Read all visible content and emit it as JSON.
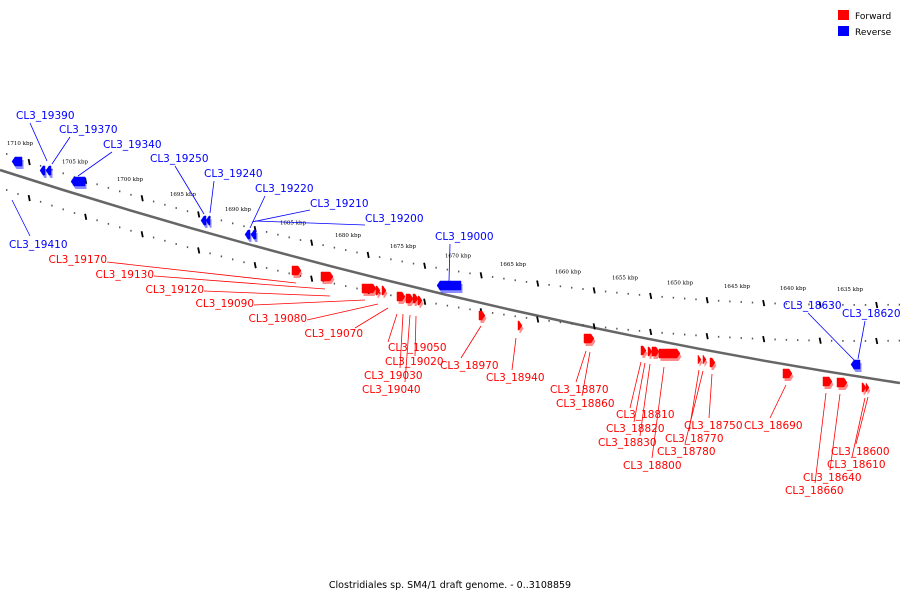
{
  "legend": [
    {
      "label": "Forward",
      "color": "#ff0000"
    },
    {
      "label": "Reverse",
      "color": "#0000ff"
    }
  ],
  "colors": {
    "forward": "#ff0000",
    "reverse": "#0000ff",
    "backbone": "#666666"
  },
  "caption": "Clostridiales sp. SM4/1 draft genome. - 0..3108859",
  "kbp_ticks": [
    1710,
    1705,
    1700,
    1695,
    1690,
    1685,
    1680,
    1675,
    1670,
    1665,
    1660,
    1655,
    1650,
    1645,
    1640,
    1635
  ],
  "kbp_unit": "kbp",
  "reverse_genes": [
    "CL3_19390",
    "CL3_19370",
    "CL3_19340",
    "CL3_19250",
    "CL3_19240",
    "CL3_19220",
    "CL3_19210",
    "CL3_19200",
    "CL3_19000",
    "CL3_18630",
    "CL3_18620",
    "CL3_19410"
  ],
  "forward_genes": [
    "CL3_19170",
    "CL3_19130",
    "CL3_19120",
    "CL3_19090",
    "CL3_19080",
    "CL3_19070",
    "CL3_19050",
    "CL3_19020",
    "CL3_19030",
    "CL3_19040",
    "CL3_18970",
    "CL3_18940",
    "CL3_18870",
    "CL3_18860",
    "CL3_18810",
    "CL3_18820",
    "CL3_18830",
    "CL3_18800",
    "CL3_18750",
    "CL3_18770",
    "CL3_18780",
    "CL3_18690",
    "CL3_18600",
    "CL3_18610",
    "CL3_18640",
    "CL3_18660"
  ]
}
